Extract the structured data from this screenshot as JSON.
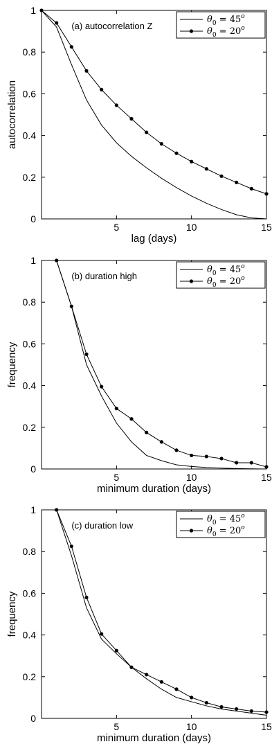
{
  "chart_data": [
    {
      "type": "line",
      "annotation": "(a) autocorrelation Z",
      "xlabel": "lag (days)",
      "ylabel": "autocorrelation",
      "xlim": [
        0,
        15
      ],
      "ylim": [
        0,
        1
      ],
      "xticks": [
        5,
        10,
        15
      ],
      "yticks": [
        0,
        0.2,
        0.4,
        0.6,
        0.8,
        1
      ],
      "ytick_labels": [
        "0",
        "0.2",
        "0.4",
        "0.6",
        "0.8",
        "1"
      ],
      "grid": false,
      "legend_position": "top-right",
      "series": [
        {
          "name": "θ₀ = 45°",
          "marker": "none",
          "x": [
            0,
            1,
            2,
            3,
            4,
            5,
            6,
            7,
            8,
            9,
            10,
            11,
            12,
            13,
            14,
            15
          ],
          "values": [
            1.0,
            0.92,
            0.74,
            0.57,
            0.45,
            0.365,
            0.3,
            0.245,
            0.195,
            0.15,
            0.11,
            0.075,
            0.045,
            0.02,
            0.005,
            0.0
          ]
        },
        {
          "name": "θ₀ = 20°",
          "marker": "dot",
          "x": [
            0,
            1,
            2,
            3,
            4,
            5,
            6,
            7,
            8,
            9,
            10,
            11,
            12,
            13,
            14,
            15
          ],
          "values": [
            1.0,
            0.94,
            0.825,
            0.71,
            0.62,
            0.545,
            0.48,
            0.415,
            0.36,
            0.315,
            0.275,
            0.24,
            0.205,
            0.175,
            0.145,
            0.12
          ]
        }
      ]
    },
    {
      "type": "line",
      "annotation": "(b) duration high",
      "xlabel": "minimum duration (days)",
      "ylabel": "frequency",
      "xlim": [
        0,
        15
      ],
      "ylim": [
        0,
        1
      ],
      "xticks": [
        5,
        10,
        15
      ],
      "yticks": [
        0,
        0.2,
        0.4,
        0.6,
        0.8,
        1
      ],
      "ytick_labels": [
        "0",
        "0.2",
        "0.4",
        "0.6",
        "0.8",
        "1"
      ],
      "grid": false,
      "legend_position": "top-right",
      "series": [
        {
          "name": "θ₀ = 45°",
          "marker": "none",
          "x": [
            1,
            2,
            3,
            4,
            5,
            6,
            7,
            8,
            9,
            10,
            11,
            12,
            13,
            14,
            15
          ],
          "values": [
            1.0,
            0.78,
            0.5,
            0.35,
            0.22,
            0.13,
            0.065,
            0.04,
            0.02,
            0.012,
            0.007,
            0.004,
            0.002,
            0.001,
            0.0
          ]
        },
        {
          "name": "θ₀ = 20°",
          "marker": "dot",
          "x": [
            1,
            2,
            3,
            4,
            5,
            6,
            7,
            8,
            9,
            10,
            11,
            12,
            13,
            14,
            15
          ],
          "values": [
            1.0,
            0.78,
            0.55,
            0.395,
            0.29,
            0.24,
            0.175,
            0.13,
            0.09,
            0.065,
            0.06,
            0.05,
            0.03,
            0.03,
            0.01
          ]
        }
      ]
    },
    {
      "type": "line",
      "annotation": "(c) duration low",
      "xlabel": "minimum duration (days)",
      "ylabel": "frequency",
      "xlim": [
        0,
        15
      ],
      "ylim": [
        0,
        1
      ],
      "xticks": [
        5,
        10,
        15
      ],
      "yticks": [
        0,
        0.2,
        0.4,
        0.6,
        0.8,
        1
      ],
      "ytick_labels": [
        "0",
        "0.2",
        "0.4",
        "0.6",
        "0.8",
        "1"
      ],
      "grid": false,
      "legend_position": "top-right",
      "series": [
        {
          "name": "θ₀ = 45°",
          "marker": "none",
          "x": [
            1,
            2,
            3,
            4,
            5,
            6,
            7,
            8,
            9,
            10,
            11,
            12,
            13,
            14,
            15
          ],
          "values": [
            1.0,
            0.78,
            0.53,
            0.38,
            0.31,
            0.245,
            0.19,
            0.14,
            0.1,
            0.08,
            0.06,
            0.045,
            0.035,
            0.025,
            0.015
          ]
        },
        {
          "name": "θ₀ = 20°",
          "marker": "dot",
          "x": [
            1,
            2,
            3,
            4,
            5,
            6,
            7,
            8,
            9,
            10,
            11,
            12,
            13,
            14,
            15
          ],
          "values": [
            1.0,
            0.825,
            0.58,
            0.405,
            0.325,
            0.245,
            0.21,
            0.175,
            0.14,
            0.1,
            0.075,
            0.055,
            0.045,
            0.035,
            0.03
          ]
        }
      ]
    }
  ]
}
